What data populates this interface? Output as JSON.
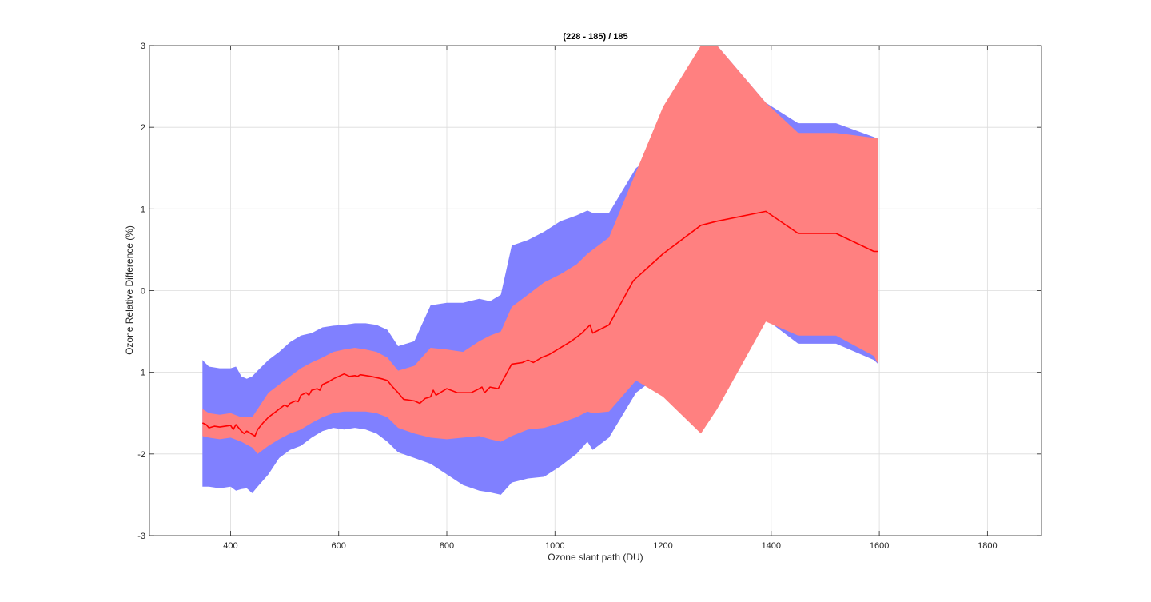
{
  "chart_data": {
    "type": "area",
    "title": "(228 - 185) / 185",
    "xlabel": "Ozone slant path (DU)",
    "ylabel": "Ozone Relative Difference (%)",
    "xlim": [
      250,
      1900
    ],
    "ylim": [
      -3,
      3
    ],
    "xticks": [
      400,
      600,
      800,
      1000,
      1200,
      1400,
      1600,
      1800
    ],
    "yticks": [
      -3,
      -2,
      -1,
      0,
      1,
      2,
      3
    ],
    "grid": true,
    "colors": {
      "outer_band": "#8080ff",
      "inner_band": "#ff8080",
      "mean_line": "#ff0000",
      "grid": "#dcdcdc",
      "axes": "#262626"
    },
    "series": [
      {
        "role": "outer_band",
        "x": [
          348,
          360,
          380,
          400,
          410,
          420,
          430,
          440,
          450,
          470,
          490,
          510,
          530,
          550,
          570,
          590,
          610,
          630,
          650,
          670,
          690,
          710,
          740,
          770,
          800,
          830,
          860,
          880,
          900,
          920,
          950,
          980,
          1010,
          1040,
          1060,
          1070,
          1100,
          1150,
          1200,
          1270,
          1300,
          1390,
          1450,
          1520,
          1590,
          1598
        ],
        "upper": [
          -0.85,
          -0.93,
          -0.95,
          -0.95,
          -0.93,
          -1.05,
          -1.08,
          -1.05,
          -0.98,
          -0.85,
          -0.75,
          -0.63,
          -0.55,
          -0.52,
          -0.45,
          -0.43,
          -0.42,
          -0.4,
          -0.4,
          -0.42,
          -0.48,
          -0.68,
          -0.62,
          -0.18,
          -0.15,
          -0.15,
          -0.1,
          -0.13,
          -0.05,
          0.55,
          0.62,
          0.72,
          0.85,
          0.92,
          0.98,
          0.95,
          0.95,
          1.5,
          1.75,
          2.9,
          3.05,
          2.3,
          2.05,
          2.05,
          1.88,
          1.86
        ],
        "lower": [
          -2.4,
          -2.4,
          -2.42,
          -2.4,
          -2.45,
          -2.43,
          -2.42,
          -2.48,
          -2.4,
          -2.25,
          -2.05,
          -1.95,
          -1.9,
          -1.8,
          -1.72,
          -1.68,
          -1.7,
          -1.68,
          -1.7,
          -1.75,
          -1.85,
          -1.98,
          -2.05,
          -2.12,
          -2.25,
          -2.38,
          -2.45,
          -2.47,
          -2.5,
          -2.35,
          -2.3,
          -2.28,
          -2.15,
          -2.0,
          -1.85,
          -1.95,
          -1.8,
          -1.25,
          -1.0,
          -0.8,
          -0.65,
          -0.35,
          -0.65,
          -0.65,
          -0.85,
          -0.9
        ]
      },
      {
        "role": "inner_band",
        "x": [
          348,
          360,
          380,
          400,
          420,
          440,
          450,
          470,
          490,
          510,
          530,
          550,
          570,
          590,
          610,
          630,
          650,
          670,
          690,
          710,
          740,
          770,
          800,
          830,
          860,
          880,
          900,
          920,
          950,
          980,
          1010,
          1040,
          1060,
          1070,
          1100,
          1150,
          1200,
          1270,
          1300,
          1390,
          1450,
          1520,
          1590,
          1598
        ],
        "upper": [
          -1.45,
          -1.5,
          -1.52,
          -1.5,
          -1.55,
          -1.55,
          -1.45,
          -1.25,
          -1.15,
          -1.05,
          -0.95,
          -0.88,
          -0.82,
          -0.75,
          -0.72,
          -0.7,
          -0.72,
          -0.75,
          -0.82,
          -0.98,
          -0.92,
          -0.7,
          -0.72,
          -0.75,
          -0.62,
          -0.55,
          -0.5,
          -0.2,
          -0.05,
          0.1,
          0.2,
          0.32,
          0.45,
          0.5,
          0.65,
          1.45,
          2.25,
          3.05,
          3.05,
          2.3,
          1.93,
          1.93,
          1.87,
          1.86
        ],
        "lower": [
          -1.78,
          -1.8,
          -1.82,
          -1.8,
          -1.85,
          -1.92,
          -2.0,
          -1.9,
          -1.82,
          -1.75,
          -1.7,
          -1.62,
          -1.55,
          -1.5,
          -1.48,
          -1.48,
          -1.48,
          -1.5,
          -1.55,
          -1.68,
          -1.75,
          -1.8,
          -1.82,
          -1.8,
          -1.78,
          -1.82,
          -1.85,
          -1.78,
          -1.7,
          -1.68,
          -1.62,
          -1.55,
          -1.48,
          -1.5,
          -1.48,
          -1.1,
          -1.3,
          -1.75,
          -1.45,
          -0.38,
          -0.55,
          -0.55,
          -0.8,
          -0.9
        ]
      },
      {
        "role": "mean_line",
        "x": [
          348,
          355,
          360,
          370,
          380,
          390,
          400,
          405,
          410,
          420,
          425,
          430,
          440,
          445,
          450,
          460,
          470,
          480,
          490,
          500,
          505,
          510,
          520,
          525,
          530,
          540,
          545,
          550,
          560,
          565,
          570,
          580,
          585,
          590,
          600,
          610,
          620,
          630,
          635,
          640,
          660,
          680,
          690,
          700,
          710,
          720,
          740,
          750,
          760,
          770,
          775,
          780,
          800,
          820,
          845,
          860,
          865,
          870,
          880,
          895,
          920,
          940,
          950,
          960,
          975,
          990,
          1030,
          1050,
          1065,
          1070,
          1100,
          1145,
          1200,
          1270,
          1300,
          1390,
          1450,
          1520,
          1590,
          1598
        ],
        "y": [
          -1.62,
          -1.64,
          -1.68,
          -1.66,
          -1.67,
          -1.66,
          -1.65,
          -1.7,
          -1.64,
          -1.72,
          -1.75,
          -1.72,
          -1.76,
          -1.78,
          -1.7,
          -1.62,
          -1.55,
          -1.5,
          -1.45,
          -1.4,
          -1.42,
          -1.38,
          -1.35,
          -1.36,
          -1.28,
          -1.25,
          -1.28,
          -1.22,
          -1.2,
          -1.22,
          -1.15,
          -1.12,
          -1.1,
          -1.08,
          -1.05,
          -1.02,
          -1.05,
          -1.04,
          -1.05,
          -1.03,
          -1.05,
          -1.08,
          -1.1,
          -1.18,
          -1.25,
          -1.33,
          -1.35,
          -1.38,
          -1.32,
          -1.3,
          -1.22,
          -1.28,
          -1.2,
          -1.25,
          -1.25,
          -1.2,
          -1.18,
          -1.25,
          -1.18,
          -1.2,
          -0.9,
          -0.88,
          -0.85,
          -0.88,
          -0.82,
          -0.78,
          -0.62,
          -0.52,
          -0.42,
          -0.52,
          -0.42,
          0.12,
          0.45,
          0.8,
          0.85,
          0.97,
          0.7,
          0.7,
          0.48,
          0.48
        ]
      }
    ]
  }
}
